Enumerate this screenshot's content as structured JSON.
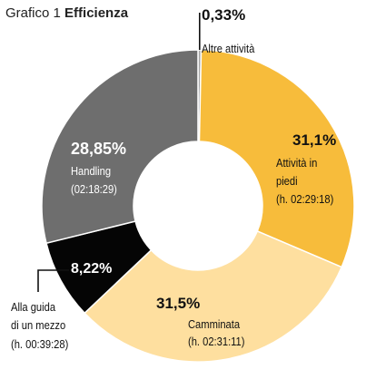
{
  "chart_data": {
    "type": "pie",
    "title_prefix": "Grafico 1",
    "title": "Efficienza",
    "slices": [
      {
        "pct_label": "0,33%",
        "name": "Altre attività",
        "duration": "",
        "value": 0.33,
        "color": "#a6a6a6"
      },
      {
        "pct_label": "31,1%",
        "name": "Attività in piedi",
        "duration": "(h. 02:29:18)",
        "value": 31.1,
        "color": "#f7bc3b"
      },
      {
        "pct_label": "31,5%",
        "name": "Camminata",
        "duration": "(h. 02:31:11)",
        "value": 31.5,
        "color": "#fedf9f"
      },
      {
        "pct_label": "8,22%",
        "name": "Alla guida di un mezzo",
        "duration": "(h. 00:39:28)",
        "value": 8.22,
        "color": "#050505"
      },
      {
        "pct_label": "28,85%",
        "name": "Handling",
        "duration": "(02:18:29)",
        "value": 28.85,
        "color": "#6e6e6e"
      }
    ]
  }
}
